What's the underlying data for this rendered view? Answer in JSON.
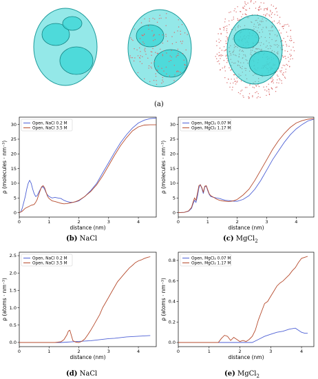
{
  "figure": {
    "caption_a": "(a)",
    "protein_color": "#3cd6d6",
    "water_color": "#d96a6a"
  },
  "colors": {
    "blue": "#4c5fd5",
    "red": "#b5492b"
  },
  "chart_data": [
    {
      "id": "b",
      "type": "line",
      "caption_label": "(b)",
      "caption_text": "NaCl",
      "caption_sub": "",
      "xlabel": "distance (nm)",
      "ylabel": "ρ (molecules · nm⁻³)",
      "xlim": [
        0,
        4.6
      ],
      "ylim": [
        -1.5,
        32.5
      ],
      "xticks": [
        0,
        1,
        2,
        3,
        4
      ],
      "yticks": [
        0,
        5,
        10,
        15,
        20,
        25,
        30
      ],
      "legend_position": "top-left",
      "series": [
        {
          "name": "Open, NaCl 0.2 M",
          "color": "blue",
          "x": [
            0,
            0.05,
            0.1,
            0.15,
            0.2,
            0.25,
            0.3,
            0.35,
            0.4,
            0.45,
            0.5,
            0.55,
            0.6,
            0.65,
            0.7,
            0.75,
            0.8,
            0.85,
            0.9,
            0.95,
            1.0,
            1.1,
            1.2,
            1.3,
            1.4,
            1.5,
            1.6,
            1.7,
            1.8,
            1.9,
            2.0,
            2.2,
            2.4,
            2.6,
            2.8,
            3.0,
            3.2,
            3.4,
            3.6,
            3.8,
            4.0,
            4.2,
            4.4,
            4.6
          ],
          "y": [
            0,
            0.2,
            1.5,
            3.5,
            5.5,
            8,
            10,
            11,
            10,
            8,
            6.5,
            5.5,
            5.8,
            6.8,
            7.8,
            8.6,
            8.8,
            8,
            6.8,
            6,
            5.5,
            5,
            5.2,
            5,
            4.8,
            4.2,
            3.8,
            3.6,
            3.5,
            3.7,
            4,
            5.5,
            7.5,
            10,
            13.5,
            17,
            20.5,
            23.8,
            26.5,
            28.8,
            30.5,
            31.5,
            32,
            32.2
          ]
        },
        {
          "name": "Open, NaCl 3.5 M",
          "color": "red",
          "x": [
            0,
            0.1,
            0.2,
            0.3,
            0.4,
            0.5,
            0.55,
            0.6,
            0.65,
            0.7,
            0.75,
            0.8,
            0.85,
            0.9,
            0.95,
            1.0,
            1.1,
            1.2,
            1.3,
            1.4,
            1.5,
            1.6,
            1.7,
            1.8,
            1.9,
            2.0,
            2.2,
            2.4,
            2.6,
            2.8,
            3.0,
            3.2,
            3.4,
            3.6,
            3.8,
            4.0,
            4.2,
            4.4,
            4.6
          ],
          "y": [
            0,
            0.5,
            1.5,
            2,
            2.5,
            2.8,
            3.5,
            4.5,
            6,
            7.5,
            8.8,
            9.2,
            8.5,
            7,
            5.5,
            4.8,
            4,
            3.8,
            3.5,
            3.2,
            3,
            3.1,
            3.3,
            3.5,
            3.8,
            4.2,
            5.5,
            7.2,
            9.5,
            12.5,
            16,
            19.5,
            22.8,
            25.5,
            27.8,
            29.2,
            29.8,
            29.9,
            29.9
          ]
        }
      ]
    },
    {
      "id": "c",
      "type": "line",
      "caption_label": "(c)",
      "caption_text": "MgCl",
      "caption_sub": "2",
      "xlabel": "distance (nm)",
      "ylabel": "ρ (molecules · nm⁻³)",
      "xlim": [
        0,
        4.6
      ],
      "ylim": [
        -1.5,
        32.5
      ],
      "xticks": [
        0,
        1,
        2,
        3,
        4
      ],
      "yticks": [
        0,
        5,
        10,
        15,
        20,
        25,
        30
      ],
      "legend_position": "top-left",
      "series": [
        {
          "name": "Open, MgCl₂ 0.07 M",
          "color": "blue",
          "x": [
            0,
            0.2,
            0.35,
            0.45,
            0.5,
            0.55,
            0.6,
            0.65,
            0.7,
            0.75,
            0.8,
            0.85,
            0.9,
            0.95,
            1.0,
            1.05,
            1.1,
            1.2,
            1.3,
            1.4,
            1.5,
            1.6,
            1.7,
            1.8,
            1.9,
            2.0,
            2.2,
            2.4,
            2.6,
            2.8,
            3.0,
            3.2,
            3.4,
            3.6,
            3.8,
            4.0,
            4.2,
            4.4,
            4.6
          ],
          "y": [
            0,
            0.1,
            0.5,
            1.5,
            3,
            4.2,
            3.5,
            5.5,
            8.5,
            9.5,
            8.2,
            6.5,
            8.8,
            9,
            7.5,
            6.2,
            5.5,
            5.2,
            5,
            4.8,
            4.5,
            4.2,
            4.1,
            4,
            3.9,
            3.9,
            4.5,
            5.8,
            8,
            11,
            14.5,
            18,
            21,
            24,
            26.5,
            28.5,
            30,
            31.2,
            31.8
          ]
        },
        {
          "name": "Open, MgCl₂ 1.17 M",
          "color": "red",
          "x": [
            0,
            0.2,
            0.35,
            0.45,
            0.5,
            0.55,
            0.6,
            0.65,
            0.7,
            0.75,
            0.8,
            0.85,
            0.9,
            0.95,
            1.0,
            1.05,
            1.1,
            1.2,
            1.3,
            1.4,
            1.5,
            1.6,
            1.7,
            1.8,
            1.9,
            2.0,
            2.2,
            2.4,
            2.6,
            2.8,
            3.0,
            3.2,
            3.4,
            3.6,
            3.8,
            4.0,
            4.2,
            4.4,
            4.6
          ],
          "y": [
            0,
            0.1,
            0.6,
            1.8,
            3.5,
            5,
            4.2,
            6.5,
            9.2,
            9.5,
            8.5,
            7,
            9,
            9.2,
            7.8,
            6.4,
            5.8,
            5.2,
            4.6,
            4.2,
            4,
            3.9,
            3.8,
            3.9,
            4.1,
            4.5,
            6,
            8,
            11,
            14.5,
            18,
            21.5,
            24.5,
            27,
            29,
            30.5,
            31.3,
            31.8,
            32
          ]
        }
      ]
    },
    {
      "id": "d",
      "type": "line",
      "caption_label": "(d)",
      "caption_text": "NaCl",
      "caption_sub": "",
      "xlabel": "distance (nm)",
      "ylabel": "ρ (atoms · nm⁻³)",
      "xlim": [
        0,
        4.6
      ],
      "ylim": [
        -0.12,
        2.6
      ],
      "xticks": [
        0,
        1,
        2,
        3,
        4
      ],
      "yticks": [
        0.0,
        0.5,
        1.0,
        1.5,
        2.0,
        2.5
      ],
      "ytick_labels": [
        "0.0",
        "0.5",
        "1.0",
        "1.5",
        "2.0",
        "2.5"
      ],
      "legend_position": "top-left",
      "series": [
        {
          "name": "Open, NaCl 0.2 M",
          "color": "blue",
          "x": [
            0,
            1.4,
            1.6,
            1.8,
            2.0,
            2.2,
            2.4,
            2.6,
            2.8,
            3.0,
            3.2,
            3.4,
            3.6,
            3.8,
            4.0,
            4.2,
            4.4
          ],
          "y": [
            0,
            0,
            0.01,
            0.02,
            0.03,
            0.04,
            0.05,
            0.07,
            0.09,
            0.11,
            0.12,
            0.14,
            0.16,
            0.17,
            0.18,
            0.19,
            0.2
          ]
        },
        {
          "name": "Open, NaCl 3.5 M",
          "color": "red",
          "x": [
            0,
            1.2,
            1.4,
            1.5,
            1.6,
            1.65,
            1.7,
            1.75,
            1.8,
            1.9,
            2.0,
            2.1,
            2.2,
            2.3,
            2.4,
            2.5,
            2.6,
            2.7,
            2.8,
            2.9,
            3.0,
            3.1,
            3.2,
            3.3,
            3.4,
            3.5,
            3.6,
            3.7,
            3.8,
            3.9,
            4.0,
            4.1,
            4.2,
            4.3,
            4.4
          ],
          "y": [
            0,
            0,
            0.02,
            0.08,
            0.22,
            0.33,
            0.35,
            0.2,
            0.05,
            0.01,
            0,
            0.03,
            0.1,
            0.22,
            0.35,
            0.5,
            0.65,
            0.8,
            1.0,
            1.15,
            1.3,
            1.45,
            1.6,
            1.75,
            1.85,
            1.95,
            2.05,
            2.15,
            2.22,
            2.3,
            2.35,
            2.38,
            2.42,
            2.45,
            2.47
          ]
        }
      ]
    },
    {
      "id": "e",
      "type": "line",
      "caption_label": "(e)",
      "caption_text": "MgCl",
      "caption_sub": "2",
      "xlabel": "distance (nm)",
      "ylabel": "ρ (atoms · nm⁻³)",
      "xlim": [
        0,
        4.4
      ],
      "ylim": [
        -0.04,
        0.88
      ],
      "xticks": [
        0,
        1,
        2,
        3,
        4
      ],
      "yticks": [
        0.0,
        0.2,
        0.4,
        0.6,
        0.8
      ],
      "ytick_labels": [
        "0.0",
        "0.2",
        "0.4",
        "0.6",
        "0.8"
      ],
      "legend_position": "top-left",
      "series": [
        {
          "name": "Open, MgCl₂ 0.07 M",
          "color": "blue",
          "x": [
            0,
            2.4,
            2.6,
            2.8,
            3.0,
            3.2,
            3.4,
            3.6,
            3.8,
            3.9,
            4.0,
            4.1,
            4.2
          ],
          "y": [
            0,
            0,
            0.03,
            0.06,
            0.08,
            0.1,
            0.11,
            0.13,
            0.14,
            0.12,
            0.1,
            0.09,
            0.09
          ]
        },
        {
          "name": "Open, MgCl₂ 1.17 M",
          "color": "red",
          "x": [
            0,
            1.3,
            1.4,
            1.5,
            1.6,
            1.7,
            1.8,
            1.9,
            2.0,
            2.1,
            2.2,
            2.3,
            2.4,
            2.5,
            2.6,
            2.7,
            2.8,
            2.9,
            3.0,
            3.1,
            3.2,
            3.3,
            3.4,
            3.5,
            3.6,
            3.7,
            3.8,
            3.9,
            4.0,
            4.1,
            4.2
          ],
          "y": [
            0,
            0,
            0.04,
            0.07,
            0.06,
            0.02,
            0.05,
            0.03,
            0.01,
            0.02,
            0.01,
            0.03,
            0.06,
            0.12,
            0.22,
            0.3,
            0.38,
            0.4,
            0.45,
            0.5,
            0.55,
            0.58,
            0.6,
            0.63,
            0.66,
            0.7,
            0.73,
            0.78,
            0.82,
            0.83,
            0.84
          ]
        }
      ]
    }
  ]
}
